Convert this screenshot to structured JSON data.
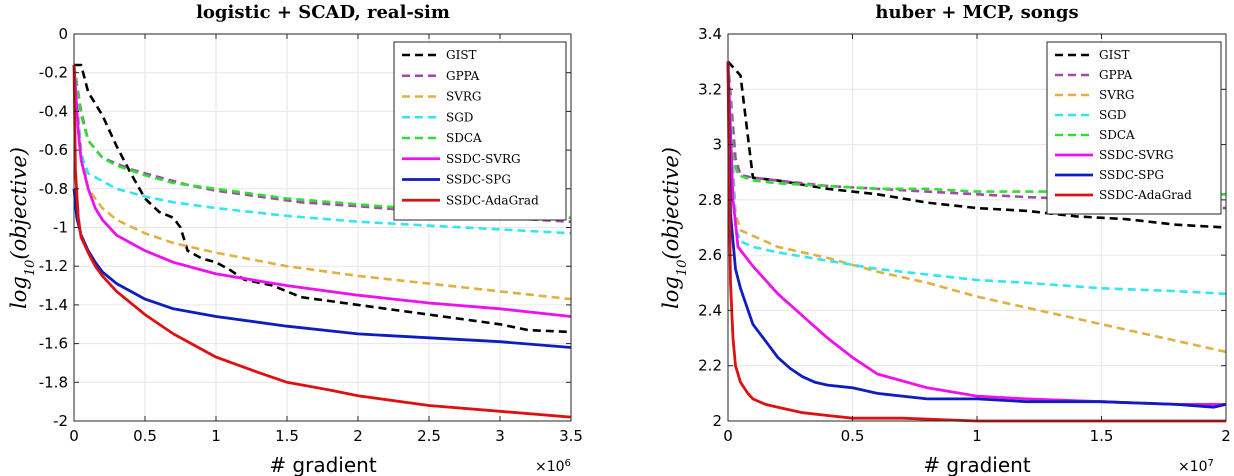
{
  "chart_data": [
    {
      "type": "line",
      "title": "logistic + SCAD, real-sim",
      "xlabel": "# gradient",
      "ylabel": "log10(objective)",
      "x_multiplier": "×10^6",
      "xlim": [
        0,
        3.5
      ],
      "ylim": [
        -2,
        0
      ],
      "xticks": [
        0,
        0.5,
        1,
        1.5,
        2,
        2.5,
        3,
        3.5
      ],
      "xtick_labels": [
        "0",
        "0.5",
        "1",
        "1.5",
        "2",
        "2.5",
        "3",
        "3.5"
      ],
      "yticks": [
        0,
        -0.2,
        -0.4,
        -0.6,
        -0.8,
        -1,
        -1.2,
        -1.4,
        -1.6,
        -1.8,
        -2
      ],
      "ytick_labels": [
        "0",
        "-0.2",
        "-0.4",
        "-0.6",
        "-0.8",
        "-1",
        "-1.2",
        "-1.4",
        "-1.6",
        "-1.8",
        "-2"
      ],
      "grid": true,
      "legend_position": "top-right",
      "series": [
        {
          "name": "GIST",
          "color": "#000000",
          "dashed": true,
          "x": [
            0,
            0.05,
            0.1,
            0.2,
            0.3,
            0.4,
            0.5,
            0.6,
            0.7,
            0.75,
            0.8,
            0.9,
            1.0,
            1.1,
            1.2,
            1.4,
            1.6,
            1.8,
            2.0,
            2.2,
            2.5,
            2.8,
            3.0,
            3.2,
            3.5
          ],
          "y": [
            -0.16,
            -0.16,
            -0.3,
            -0.42,
            -0.58,
            -0.72,
            -0.85,
            -0.92,
            -0.95,
            -1.0,
            -1.12,
            -1.16,
            -1.18,
            -1.22,
            -1.27,
            -1.3,
            -1.36,
            -1.38,
            -1.4,
            -1.42,
            -1.45,
            -1.48,
            -1.5,
            -1.53,
            -1.54
          ]
        },
        {
          "name": "GPPA",
          "color": "#a24aa6",
          "dashed": true,
          "x": [
            0,
            0.05,
            0.1,
            0.2,
            0.4,
            0.6,
            0.8,
            1.0,
            1.3,
            1.6,
            2.0,
            2.5,
            3.0,
            3.5
          ],
          "y": [
            -0.16,
            -0.4,
            -0.55,
            -0.64,
            -0.7,
            -0.74,
            -0.78,
            -0.81,
            -0.84,
            -0.87,
            -0.89,
            -0.92,
            -0.95,
            -0.97
          ]
        },
        {
          "name": "SVRG",
          "color": "#e0b040",
          "dashed": true,
          "x": [
            0,
            0.05,
            0.1,
            0.2,
            0.3,
            0.5,
            0.7,
            1.0,
            1.5,
            2.0,
            2.5,
            3.0,
            3.5
          ],
          "y": [
            -0.16,
            -0.6,
            -0.8,
            -0.9,
            -0.96,
            -1.03,
            -1.08,
            -1.13,
            -1.2,
            -1.25,
            -1.29,
            -1.33,
            -1.37
          ]
        },
        {
          "name": "SGD",
          "color": "#33e5f0",
          "dashed": true,
          "x": [
            0,
            0.05,
            0.1,
            0.2,
            0.3,
            0.5,
            0.7,
            1.0,
            1.5,
            2.0,
            2.5,
            3.0,
            3.5
          ],
          "y": [
            -0.16,
            -0.62,
            -0.72,
            -0.76,
            -0.8,
            -0.84,
            -0.87,
            -0.9,
            -0.94,
            -0.97,
            -0.99,
            -1.01,
            -1.03
          ]
        },
        {
          "name": "SDCA",
          "color": "#33dd33",
          "dashed": true,
          "x": [
            0,
            0.05,
            0.1,
            0.2,
            0.3,
            0.5,
            0.7,
            1.0,
            1.5,
            2.0,
            2.5,
            3.0,
            3.5
          ],
          "y": [
            -0.16,
            -0.42,
            -0.55,
            -0.64,
            -0.68,
            -0.73,
            -0.77,
            -0.8,
            -0.85,
            -0.88,
            -0.91,
            -0.93,
            -0.95
          ]
        },
        {
          "name": "SSDC-SVRG",
          "color": "#ee11ee",
          "dashed": false,
          "x": [
            0,
            0.03,
            0.05,
            0.1,
            0.15,
            0.2,
            0.3,
            0.4,
            0.5,
            0.7,
            1.0,
            1.5,
            2.0,
            2.5,
            3.0,
            3.5
          ],
          "y": [
            -0.16,
            -0.5,
            -0.65,
            -0.8,
            -0.9,
            -0.96,
            -1.04,
            -1.08,
            -1.12,
            -1.18,
            -1.24,
            -1.3,
            -1.35,
            -1.39,
            -1.42,
            -1.46
          ]
        },
        {
          "name": "SSDC-SPG",
          "color": "#0d1dc0",
          "dashed": false,
          "x": [
            0,
            0.02,
            0.05,
            0.1,
            0.15,
            0.2,
            0.3,
            0.5,
            0.7,
            1.0,
            1.5,
            2.0,
            2.5,
            3.0,
            3.5
          ],
          "y": [
            -0.8,
            -0.95,
            -1.04,
            -1.12,
            -1.18,
            -1.23,
            -1.29,
            -1.37,
            -1.42,
            -1.46,
            -1.51,
            -1.55,
            -1.57,
            -1.59,
            -1.62
          ]
        },
        {
          "name": "SSDC-AdaGrad",
          "color": "#dd1111",
          "dashed": false,
          "x": [
            0,
            0.01,
            0.03,
            0.05,
            0.1,
            0.15,
            0.2,
            0.3,
            0.5,
            0.7,
            1.0,
            1.3,
            1.5,
            1.8,
            2.0,
            2.5,
            3.0,
            3.5
          ],
          "y": [
            -0.16,
            -0.7,
            -0.95,
            -1.05,
            -1.13,
            -1.2,
            -1.25,
            -1.33,
            -1.45,
            -1.55,
            -1.67,
            -1.75,
            -1.8,
            -1.84,
            -1.87,
            -1.92,
            -1.95,
            -1.98
          ]
        }
      ]
    },
    {
      "type": "line",
      "title": "huber + MCP, songs",
      "xlabel": "# gradient",
      "ylabel": "log10(objective)",
      "x_multiplier": "×10^7",
      "xlim": [
        0,
        2
      ],
      "ylim": [
        2,
        3.4
      ],
      "xticks": [
        0,
        0.5,
        1,
        1.5,
        2
      ],
      "xtick_labels": [
        "0",
        "0.5",
        "1",
        "1.5",
        "2"
      ],
      "yticks": [
        2,
        2.2,
        2.4,
        2.6,
        2.8,
        3,
        3.2,
        3.4
      ],
      "ytick_labels": [
        "2",
        "2.2",
        "2.4",
        "2.6",
        "2.8",
        "3",
        "3.2",
        "3.4"
      ],
      "grid": true,
      "legend_position": "top-right",
      "series": [
        {
          "name": "GIST",
          "color": "#000000",
          "dashed": true,
          "x": [
            0,
            0.05,
            0.1,
            0.2,
            0.4,
            0.6,
            0.8,
            1.0,
            1.2,
            1.4,
            1.6,
            1.8,
            2.0
          ],
          "y": [
            3.3,
            3.25,
            2.88,
            2.87,
            2.84,
            2.82,
            2.79,
            2.77,
            2.76,
            2.74,
            2.73,
            2.71,
            2.7
          ]
        },
        {
          "name": "GPPA",
          "color": "#a24aa6",
          "dashed": true,
          "x": [
            0,
            0.03,
            0.05,
            0.1,
            0.2,
            0.4,
            0.6,
            0.8,
            1.0,
            1.2,
            1.5,
            1.8,
            2.0
          ],
          "y": [
            3.3,
            2.95,
            2.89,
            2.88,
            2.87,
            2.85,
            2.84,
            2.83,
            2.82,
            2.81,
            2.8,
            2.78,
            2.77
          ]
        },
        {
          "name": "SVRG",
          "color": "#e0b040",
          "dashed": true,
          "x": [
            0,
            0.03,
            0.05,
            0.1,
            0.2,
            0.4,
            0.6,
            0.8,
            1.0,
            1.2,
            1.4,
            1.6,
            1.8,
            2.0
          ],
          "y": [
            3.3,
            2.75,
            2.69,
            2.67,
            2.63,
            2.59,
            2.54,
            2.5,
            2.45,
            2.41,
            2.37,
            2.33,
            2.29,
            2.25
          ]
        },
        {
          "name": "SGD",
          "color": "#33e5f0",
          "dashed": true,
          "x": [
            0,
            0.03,
            0.05,
            0.1,
            0.2,
            0.4,
            0.6,
            0.8,
            1.0,
            1.2,
            1.5,
            1.8,
            2.0
          ],
          "y": [
            3.3,
            2.7,
            2.65,
            2.63,
            2.61,
            2.58,
            2.55,
            2.53,
            2.51,
            2.5,
            2.48,
            2.47,
            2.46
          ]
        },
        {
          "name": "SDCA",
          "color": "#33dd33",
          "dashed": true,
          "x": [
            0,
            0.02,
            0.04,
            0.1,
            0.2,
            0.4,
            0.6,
            0.8,
            1.0,
            1.2,
            1.5,
            1.8,
            2.0
          ],
          "y": [
            3.3,
            2.95,
            2.89,
            2.87,
            2.86,
            2.85,
            2.84,
            2.84,
            2.83,
            2.83,
            2.83,
            2.82,
            2.82
          ]
        },
        {
          "name": "SSDC-SVRG",
          "color": "#ee11ee",
          "dashed": false,
          "x": [
            0,
            0.02,
            0.04,
            0.1,
            0.2,
            0.3,
            0.4,
            0.5,
            0.6,
            0.8,
            1.0,
            1.2,
            1.5,
            1.8,
            2.0
          ],
          "y": [
            3.3,
            2.8,
            2.63,
            2.56,
            2.46,
            2.38,
            2.3,
            2.23,
            2.17,
            2.12,
            2.09,
            2.08,
            2.07,
            2.06,
            2.06
          ]
        },
        {
          "name": "SSDC-SPG",
          "color": "#0d1dc0",
          "dashed": false,
          "x": [
            0,
            0.01,
            0.03,
            0.05,
            0.1,
            0.15,
            0.2,
            0.25,
            0.3,
            0.35,
            0.4,
            0.5,
            0.6,
            0.8,
            1.0,
            1.2,
            1.5,
            1.8,
            1.95,
            2.0
          ],
          "y": [
            3.3,
            2.75,
            2.55,
            2.48,
            2.35,
            2.29,
            2.23,
            2.19,
            2.16,
            2.14,
            2.13,
            2.12,
            2.1,
            2.08,
            2.08,
            2.07,
            2.07,
            2.06,
            2.05,
            2.06
          ]
        },
        {
          "name": "SSDC-AdaGrad",
          "color": "#dd1111",
          "dashed": false,
          "x": [
            0,
            0.005,
            0.01,
            0.02,
            0.03,
            0.05,
            0.08,
            0.1,
            0.15,
            0.2,
            0.3,
            0.4,
            0.5,
            0.7,
            1.0,
            1.5,
            2.0
          ],
          "y": [
            3.3,
            2.85,
            2.5,
            2.3,
            2.2,
            2.14,
            2.1,
            2.08,
            2.06,
            2.05,
            2.03,
            2.02,
            2.01,
            2.01,
            2.0,
            2.0,
            2.0
          ]
        }
      ]
    }
  ]
}
